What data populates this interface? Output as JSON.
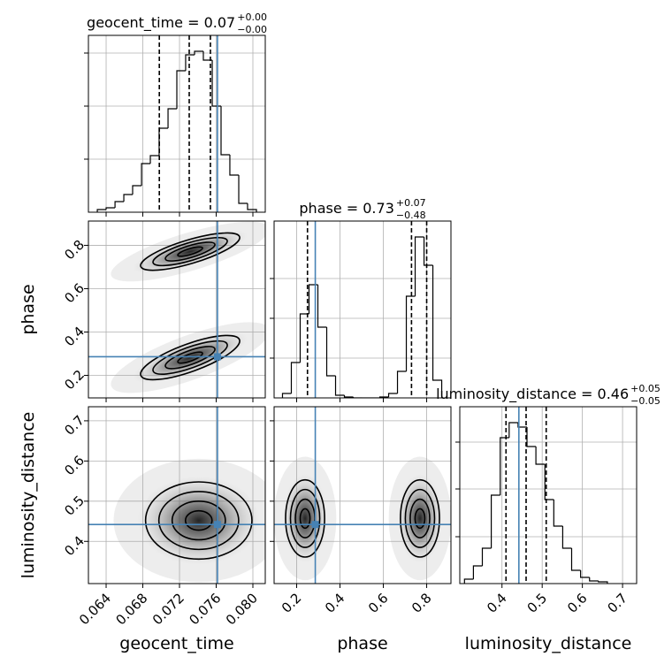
{
  "chart_data": {
    "type": "corner",
    "grid": true,
    "truth_color": "#4682b4",
    "levels": [
      0.5,
      1,
      1.5,
      2
    ],
    "parameters": [
      {
        "name": "geocent_time",
        "lim": [
          0.06207,
          0.08135
        ],
        "ticks": [
          0.064,
          0.068,
          0.072,
          0.076,
          {
            "value": 0.08,
            "label": "0.080"
          }
        ],
        "truth": 0.07614,
        "quantiles": [
          0.0698,
          0.07306,
          0.07537
        ],
        "title": {
          "text": "geocent_time = 0.07",
          "plus": "+0.00",
          "minus": "−0.00"
        },
        "hist": {
          "bins": [
            0.06304,
            0.064,
            0.06497,
            0.06593,
            0.06689,
            0.06786,
            0.06882,
            0.06978,
            0.07075,
            0.07171,
            0.07267,
            0.07364,
            0.0746,
            0.07557,
            0.07653,
            0.07749,
            0.07846,
            0.07942,
            0.08039
          ],
          "counts": [
            3,
            5,
            12,
            20,
            30,
            55,
            64,
            95,
            117,
            160,
            178,
            182,
            172,
            120,
            65,
            42,
            10,
            3
          ],
          "ylim": [
            0,
            200
          ],
          "yticks": [
            60,
            120,
            180
          ]
        }
      },
      {
        "name": "phase",
        "lim": [
          0.096,
          0.912
        ],
        "ticks": [
          0.2,
          0.4,
          0.6,
          0.8
        ],
        "truth": 0.286,
        "quantiles": [
          0.25,
          0.73,
          0.8
        ],
        "title": {
          "text": "phase = 0.73",
          "plus": "+0.07",
          "minus": "−0.48"
        },
        "hist": {
          "bins": [
            0.1347,
            0.1755,
            0.2163,
            0.2571,
            0.298,
            0.3388,
            0.3796,
            0.4204,
            0.4612,
            0.502,
            0.5429,
            0.5837,
            0.6245,
            0.6653,
            0.7061,
            0.7469,
            0.7878,
            0.8286,
            0.8694
          ],
          "counts": [
            5,
            40,
            95,
            128,
            80,
            25,
            3,
            1,
            0,
            0,
            0,
            1,
            5,
            30,
            115,
            182,
            150,
            20
          ],
          "ylim": [
            0,
            200
          ],
          "yticks": [
            45,
            90,
            135
          ]
        }
      },
      {
        "name": "luminosity_distance",
        "lim": [
          0.295,
          0.735
        ],
        "ticks": [
          0.4,
          0.5,
          0.6,
          0.7
        ],
        "truth": 0.442,
        "quantiles": [
          0.41,
          0.46,
          0.51
        ],
        "title": {
          "text": "luminosity_distance = 0.46",
          "plus": "+0.05",
          "minus": "−0.05"
        },
        "hist": {
          "bins": [
            0.3067,
            0.3289,
            0.3511,
            0.3733,
            0.3956,
            0.4178,
            0.44,
            0.4622,
            0.4844,
            0.5067,
            0.5289,
            0.5511,
            0.5733,
            0.5956,
            0.6178,
            0.64,
            0.6622
          ],
          "counts": [
            5,
            20,
            40,
            100,
            165,
            182,
            177,
            155,
            135,
            95,
            65,
            40,
            15,
            7,
            3,
            2
          ],
          "ylim": [
            0,
            200
          ],
          "yticks": [
            53,
            107,
            160
          ]
        }
      }
    ],
    "pairs": [
      {
        "x": 0,
        "y": 1,
        "modes": [
          {
            "x": 0.07316,
            "y": 0.771,
            "sx": 0.0027,
            "sy": 0.043,
            "rho": 0.75
          },
          {
            "x": 0.07316,
            "y": 0.282,
            "sx": 0.0027,
            "sy": 0.051,
            "rho": 0.75
          }
        ]
      },
      {
        "x": 0,
        "y": 2,
        "modes": [
          {
            "x": 0.0741,
            "y": 0.452,
            "sx": 0.0029,
            "sy": 0.048,
            "rho": 0
          }
        ]
      },
      {
        "x": 1,
        "y": 2,
        "modes": [
          {
            "x": 0.239,
            "y": 0.457,
            "sx": 0.045,
            "sy": 0.048,
            "rho": 0
          },
          {
            "x": 0.769,
            "y": 0.457,
            "sx": 0.045,
            "sy": 0.048,
            "rho": 0
          }
        ]
      }
    ]
  }
}
